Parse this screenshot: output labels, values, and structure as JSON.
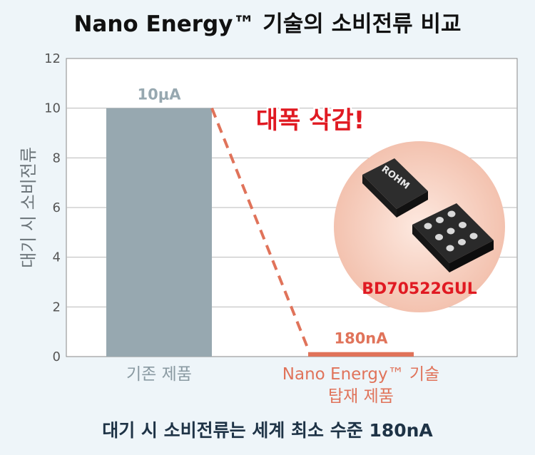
{
  "title": "Nano Energy™ 기술의 소비전류 비교",
  "footer": "대기 시 소비전류는 세계 최소 수준 180nA",
  "callout": "대폭 삭감!",
  "product": {
    "name": "BD70522GUL",
    "brand": "ROHM"
  },
  "colors": {
    "bar_existing": "#97a8b0",
    "bar_nano": "#e0735a",
    "callout": "#e01a22",
    "circle": "#f7cfc0"
  },
  "chart_data": {
    "type": "bar",
    "title": "Nano Energy™ 기술의 소비전류 비교",
    "ylabel": "대기 시 소비전류",
    "ylim": [
      0,
      12
    ],
    "yticks": [
      0,
      2,
      4,
      6,
      8,
      10,
      12
    ],
    "grid": true,
    "categories": [
      "기존 제품",
      "Nano Energy™ 기술\n탑재 제품"
    ],
    "values": [
      10,
      0.18
    ],
    "data_labels": [
      "10μA",
      "180nA"
    ]
  }
}
